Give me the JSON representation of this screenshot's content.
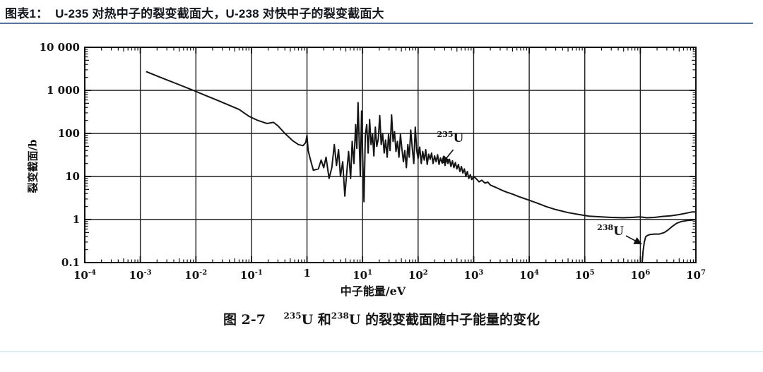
{
  "page": {
    "title": "图表1：  U-235 对热中子的裂变截面大，U-238 对快中子的裂变截面大",
    "title_underline_color": "#54779f",
    "bottom_rule_color": "#ddeef2"
  },
  "figure": {
    "caption_parts": [
      {
        "t": "图 2-7　 "
      },
      {
        "sup": "235"
      },
      {
        "t": "U 和"
      },
      {
        "sup": "238"
      },
      {
        "t": "U 的裂变截面随中子能量的变化"
      }
    ],
    "xlabel": "中子能量/eV",
    "ylabel": "裂变截面/b"
  },
  "chart_data": {
    "type": "line",
    "x_scale": "log",
    "y_scale": "log",
    "xlim": [
      0.0001,
      10000000
    ],
    "ylim": [
      0.1,
      10000
    ],
    "grid": true,
    "legend": "none",
    "line_color": "#151515",
    "grid_color": "#1f1f1f",
    "x_tick_exponents": [
      -4,
      -3,
      -2,
      -1,
      0,
      1,
      2,
      3,
      4,
      5,
      6,
      7
    ],
    "x_tick_labels": [
      {
        "base": "10",
        "exp": "-4"
      },
      {
        "base": "10",
        "exp": "-3"
      },
      {
        "base": "10",
        "exp": "-2"
      },
      {
        "base": "10",
        "exp": "-1"
      },
      {
        "base": "1",
        "exp": ""
      },
      {
        "base": "10",
        "exp": "1"
      },
      {
        "base": "10",
        "exp": "2"
      },
      {
        "base": "10",
        "exp": "3"
      },
      {
        "base": "10",
        "exp": "4"
      },
      {
        "base": "10",
        "exp": "5"
      },
      {
        "base": "10",
        "exp": "6"
      },
      {
        "base": "10",
        "exp": "7"
      }
    ],
    "y_tick_values": [
      10000,
      1000,
      100,
      10,
      1,
      0.1
    ],
    "y_tick_labels": [
      "10 000",
      "1 000",
      "100",
      "10",
      "1",
      "0.1"
    ],
    "series": [
      {
        "name": "U-235 fission cross section",
        "points": [
          [
            0.0013,
            2700
          ],
          [
            0.002,
            2150
          ],
          [
            0.003,
            1750
          ],
          [
            0.005,
            1350
          ],
          [
            0.009,
            1000
          ],
          [
            0.015,
            760
          ],
          [
            0.025,
            580
          ],
          [
            0.04,
            450
          ],
          [
            0.06,
            360
          ],
          [
            0.09,
            250
          ],
          [
            0.13,
            200
          ],
          [
            0.19,
            170
          ],
          [
            0.25,
            180
          ],
          [
            0.3,
            150
          ],
          [
            0.4,
            100
          ],
          [
            0.55,
            68
          ],
          [
            0.7,
            55
          ],
          [
            0.85,
            52
          ],
          [
            0.95,
            62
          ],
          [
            1.0,
            90
          ],
          [
            1.05,
            40
          ],
          [
            1.15,
            25
          ],
          [
            1.3,
            14
          ],
          [
            1.6,
            15
          ],
          [
            1.8,
            24
          ],
          [
            2.0,
            16
          ],
          [
            2.2,
            28
          ],
          [
            2.5,
            9
          ],
          [
            2.8,
            16
          ],
          [
            3.1,
            55
          ],
          [
            3.4,
            18
          ],
          [
            3.7,
            42
          ],
          [
            4.0,
            10
          ],
          [
            4.4,
            22
          ],
          [
            4.8,
            3.5
          ],
          [
            5.2,
            12
          ],
          [
            5.6,
            38
          ],
          [
            6.1,
            9
          ],
          [
            6.5,
            65
          ],
          [
            7.0,
            20
          ],
          [
            7.5,
            160
          ],
          [
            7.9,
            45
          ],
          [
            8.3,
            520
          ],
          [
            8.7,
            70
          ],
          [
            9.1,
            10
          ],
          [
            9.6,
            330
          ],
          [
            10.1,
            25
          ],
          [
            10.6,
            2.6
          ],
          [
            11.2,
            90
          ],
          [
            11.9,
            160
          ],
          [
            12.6,
            35
          ],
          [
            13.4,
            210
          ],
          [
            14.2,
            55
          ],
          [
            15.1,
            95
          ],
          [
            16,
            30
          ],
          [
            17,
            140
          ],
          [
            18,
            50
          ],
          [
            19.2,
            75
          ],
          [
            20.4,
            260
          ],
          [
            21.7,
            55
          ],
          [
            23,
            100
          ],
          [
            24.5,
            35
          ],
          [
            26,
            70
          ],
          [
            27.7,
            28
          ],
          [
            29.4,
            95
          ],
          [
            31.3,
            40
          ],
          [
            33.3,
            270
          ],
          [
            35.4,
            65
          ],
          [
            37.6,
            110
          ],
          [
            40,
            38
          ],
          [
            42.5,
            65
          ],
          [
            45.2,
            28
          ],
          [
            48,
            95
          ],
          [
            51,
            45
          ],
          [
            54.3,
            22
          ],
          [
            57.7,
            40
          ],
          [
            61.4,
            16
          ],
          [
            65.3,
            55
          ],
          [
            69.4,
            28
          ],
          [
            73.8,
            120
          ],
          [
            78.5,
            45
          ],
          [
            83.5,
            20
          ],
          [
            88.8,
            140
          ],
          [
            94.4,
            40
          ],
          [
            100,
            26
          ],
          [
            107,
            48
          ],
          [
            114,
            20
          ],
          [
            121,
            38
          ],
          [
            129,
            24
          ],
          [
            137,
            42
          ],
          [
            146,
            19
          ],
          [
            155,
            33
          ],
          [
            165,
            25
          ],
          [
            175,
            35
          ],
          [
            186,
            20
          ],
          [
            198,
            30
          ],
          [
            211,
            22
          ],
          [
            224,
            32
          ],
          [
            238,
            19
          ],
          [
            253,
            27
          ],
          [
            269,
            21
          ],
          [
            287,
            29
          ],
          [
            305,
            18
          ],
          [
            324,
            26
          ],
          [
            345,
            20
          ],
          [
            367,
            25
          ],
          [
            390,
            17
          ],
          [
            415,
            23
          ],
          [
            441,
            16
          ],
          [
            469,
            21
          ],
          [
            499,
            15
          ],
          [
            531,
            19
          ],
          [
            565,
            13
          ],
          [
            601,
            17
          ],
          [
            639,
            12
          ],
          [
            680,
            15
          ],
          [
            723,
            10
          ],
          [
            770,
            13
          ],
          [
            819,
            9
          ],
          [
            871,
            11
          ],
          [
            926,
            8.5
          ],
          [
            1000,
            10
          ],
          [
            1100,
            9
          ],
          [
            1250,
            7.5
          ],
          [
            1400,
            8.2
          ],
          [
            1600,
            7
          ],
          [
            1800,
            7.4
          ],
          [
            2000,
            6.3
          ],
          [
            2500,
            5.6
          ],
          [
            3200,
            4.8
          ],
          [
            4000,
            4.3
          ],
          [
            5000,
            3.9
          ],
          [
            6500,
            3.4
          ],
          [
            8000,
            3.1
          ],
          [
            10000,
            2.8
          ],
          [
            14000,
            2.4
          ],
          [
            20000,
            2.0
          ],
          [
            30000,
            1.7
          ],
          [
            50000,
            1.45
          ],
          [
            80000,
            1.3
          ],
          [
            120000,
            1.2
          ],
          [
            200000,
            1.15
          ],
          [
            300000,
            1.12
          ],
          [
            500000,
            1.1
          ],
          [
            700000,
            1.12
          ],
          [
            1000000,
            1.15
          ],
          [
            1300000,
            1.1
          ],
          [
            1800000,
            1.12
          ],
          [
            2500000,
            1.18
          ],
          [
            3500000,
            1.22
          ],
          [
            5000000,
            1.3
          ],
          [
            7000000,
            1.42
          ],
          [
            8500000,
            1.5
          ],
          [
            10000000,
            1.5
          ]
        ]
      },
      {
        "name": "U-238 fission cross section",
        "points": [
          [
            1080000,
            0.1
          ],
          [
            1120000,
            0.18
          ],
          [
            1180000,
            0.3
          ],
          [
            1250000,
            0.4
          ],
          [
            1350000,
            0.43
          ],
          [
            1500000,
            0.45
          ],
          [
            1800000,
            0.46
          ],
          [
            2200000,
            0.46
          ],
          [
            2700000,
            0.5
          ],
          [
            3200000,
            0.58
          ],
          [
            3800000,
            0.7
          ],
          [
            4500000,
            0.82
          ],
          [
            5500000,
            0.9
          ],
          [
            7000000,
            0.95
          ],
          [
            8500000,
            0.97
          ],
          [
            10000000,
            1.0
          ]
        ]
      }
    ],
    "annotations": [
      {
        "id": "u235",
        "sup": "235",
        "sym": "U",
        "label_at": [
          380,
          80
        ],
        "arrow_from": [
          430,
          42
        ],
        "arrow_to": [
          270,
          20
        ]
      },
      {
        "id": "u238",
        "sup": "238",
        "sym": "U",
        "label_at": [
          290000,
          0.55
        ],
        "arrow_from": [
          550000,
          0.42
        ],
        "arrow_to": [
          1050000,
          0.27
        ]
      }
    ]
  }
}
